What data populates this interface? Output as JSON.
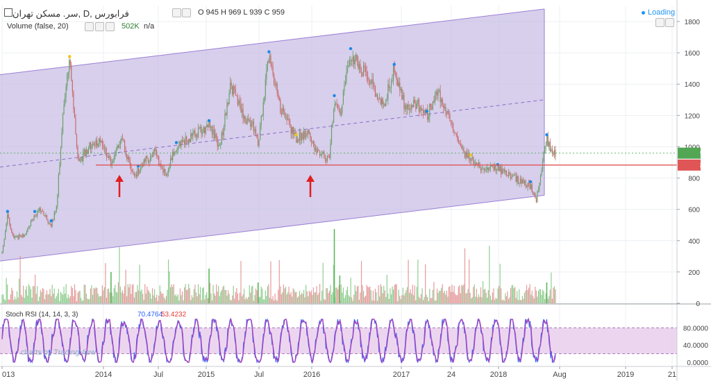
{
  "header": {
    "symbol": "سر. مسکن تهران, D, فرابورس",
    "ohlc": "O 945 H 969 L 939 C 959",
    "volume_label": "Volume (false, 20)",
    "volume_value": "502K",
    "volume_na": "n/a",
    "stoch_label": "Stoch RSI (14, 14, 3, 3)",
    "stoch_k": "70.4764",
    "stoch_d": "53.4232",
    "loading": "Loading",
    "watermark": "charts by TradingView"
  },
  "price_scale": {
    "ticks": [
      "1800",
      "1600",
      "1400",
      "1200",
      "1000",
      "800",
      "600",
      "400",
      "200",
      "0"
    ],
    "current_price": "959",
    "line_price": "883"
  },
  "stoch_scale": {
    "ticks": [
      "80.0000",
      "40.0000",
      "0.0000"
    ]
  },
  "time_axis": {
    "labels": [
      "013",
      "2014",
      "Jul",
      "2015",
      "Jul",
      "2016",
      "2017",
      "24",
      "2018",
      "Aug",
      "2019",
      "21"
    ]
  },
  "colors": {
    "channel_fill": "#c9bfe6",
    "channel_line": "#9c7fd4",
    "support_line": "#e05555",
    "arrow": "#e02020",
    "up_candle": "#6a9e6a",
    "down_candle": "#c86a6a",
    "stoch_k": "#2962ff",
    "stoch_d": "#ab47bc"
  },
  "chart_data": {
    "type": "candlestick",
    "ylim": [
      0,
      1900
    ],
    "price_path": [
      [
        2013.0,
        320
      ],
      [
        2013.05,
        560
      ],
      [
        2013.1,
        420
      ],
      [
        2013.2,
        430
      ],
      [
        2013.3,
        560
      ],
      [
        2013.35,
        600
      ],
      [
        2013.45,
        500
      ],
      [
        2013.5,
        620
      ],
      [
        2013.57,
        1300
      ],
      [
        2013.62,
        1550
      ],
      [
        2013.7,
        900
      ],
      [
        2013.8,
        1000
      ],
      [
        2013.9,
        1050
      ],
      [
        2014.0,
        900
      ],
      [
        2014.1,
        1060
      ],
      [
        2014.2,
        800
      ],
      [
        2014.3,
        900
      ],
      [
        2014.4,
        960
      ],
      [
        2014.5,
        820
      ],
      [
        2014.6,
        1000
      ],
      [
        2014.8,
        1090
      ],
      [
        2014.9,
        1140
      ],
      [
        2015.0,
        1000
      ],
      [
        2015.1,
        1400
      ],
      [
        2015.2,
        1210
      ],
      [
        2015.3,
        1140
      ],
      [
        2015.35,
        1000
      ],
      [
        2015.45,
        1580
      ],
      [
        2015.55,
        1250
      ],
      [
        2015.7,
        1050
      ],
      [
        2015.8,
        1100
      ],
      [
        2015.9,
        960
      ],
      [
        2016.0,
        920
      ],
      [
        2016.05,
        1300
      ],
      [
        2016.1,
        1200
      ],
      [
        2016.2,
        1600
      ],
      [
        2016.3,
        1500
      ],
      [
        2016.4,
        1400
      ],
      [
        2016.5,
        1250
      ],
      [
        2016.6,
        1500
      ],
      [
        2016.7,
        1250
      ],
      [
        2016.8,
        1280
      ],
      [
        2016.9,
        1200
      ],
      [
        2017.0,
        1350
      ],
      [
        2017.1,
        1200
      ],
      [
        2017.25,
        950
      ],
      [
        2017.4,
        860
      ],
      [
        2017.55,
        860
      ],
      [
        2017.7,
        800
      ],
      [
        2017.85,
        750
      ],
      [
        2017.9,
        650
      ],
      [
        2017.95,
        860
      ],
      [
        2018.0,
        1050
      ],
      [
        2018.05,
        940
      ],
      [
        2018.08,
        959
      ]
    ],
    "annotations": [
      {
        "type": "horizontal_line",
        "value": 883
      },
      {
        "type": "channel",
        "upper_start": 1460,
        "upper_end": 1880,
        "lower_start": 270,
        "lower_end": 690,
        "mid_start": 870,
        "mid_end": 1300
      },
      {
        "type": "arrow_up",
        "x": 2014.05
      },
      {
        "type": "arrow_up",
        "x": 2016.0
      }
    ],
    "volume_peaks_k": [
      100,
      200,
      250,
      400,
      200
    ],
    "stoch_levels": [
      80,
      20
    ]
  }
}
